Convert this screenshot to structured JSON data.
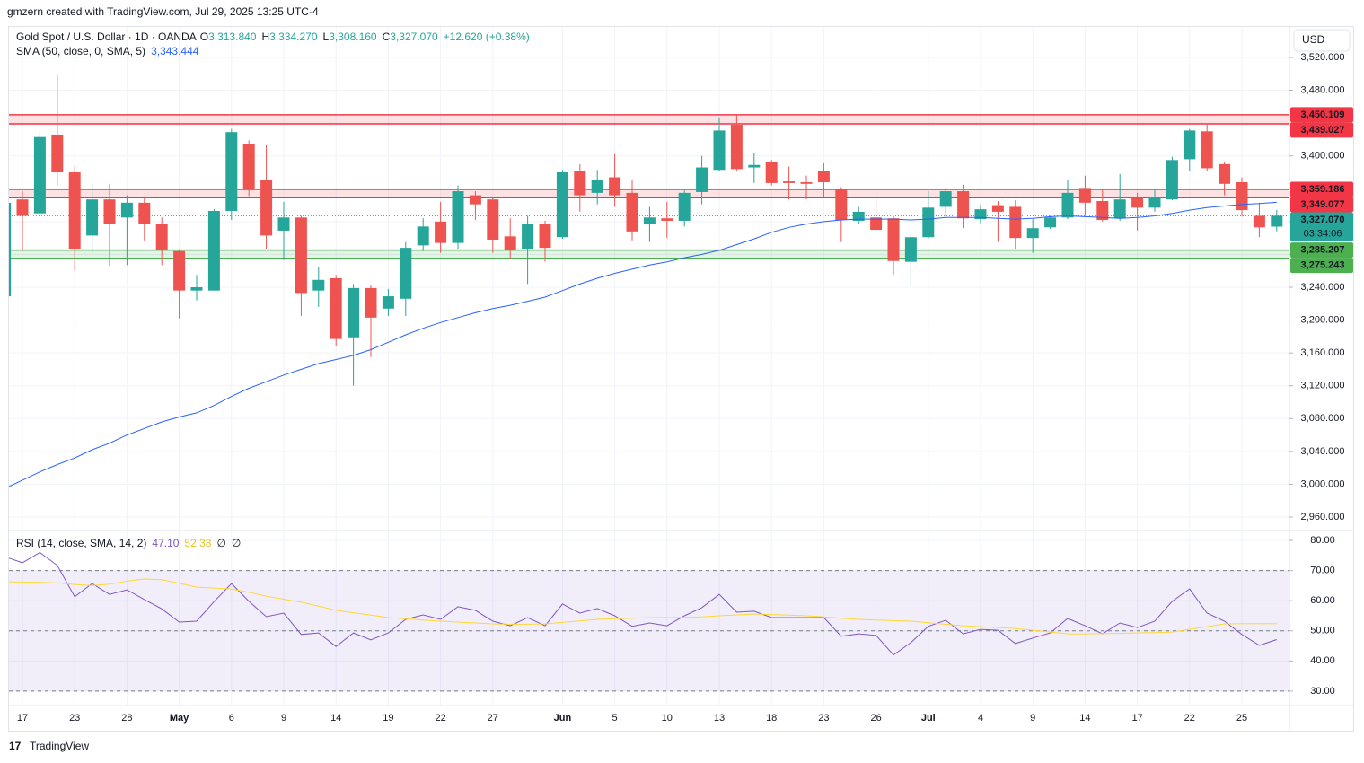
{
  "header": {
    "credit": "gmzern created with TradingView.com, Jul 29, 2025 13:25 UTC-4",
    "currency": "USD",
    "logo": "TradingView"
  },
  "chart_data": [
    {
      "type": "candlestick",
      "title": "Gold Spot / U.S. Dollar · 1D · OANDA",
      "ohlc_legend": [
        {
          "key": "O",
          "value": "3,313.840"
        },
        {
          "key": "H",
          "value": "3,334.270"
        },
        {
          "key": "L",
          "value": "3,308.160"
        },
        {
          "key": "C",
          "value": "3,327.070"
        }
      ],
      "change": "+12.620 (+0.38%)",
      "categories": [
        null,
        "17",
        null,
        null,
        "23",
        null,
        null,
        "28",
        null,
        null,
        "May",
        null,
        null,
        "6",
        null,
        null,
        "9",
        null,
        null,
        "14",
        null,
        null,
        "19",
        null,
        null,
        "22",
        null,
        null,
        "27",
        null,
        null,
        null,
        "Jun",
        null,
        null,
        "5",
        null,
        null,
        "10",
        null,
        null,
        "13",
        null,
        null,
        "18",
        null,
        null,
        "23",
        null,
        null,
        "26",
        null,
        null,
        "Jul",
        null,
        null,
        "4",
        null,
        null,
        "9",
        null,
        null,
        "14",
        null,
        null,
        "17",
        null,
        null,
        "22",
        null,
        null,
        "25",
        null,
        null
      ],
      "open": [
        3229,
        3347,
        3330,
        3426,
        3380,
        3303,
        3347,
        3325,
        3343,
        3317,
        3284,
        3236,
        3236,
        3333,
        3415,
        3371,
        3309,
        3325,
        3236,
        3251,
        3179,
        3239,
        3214,
        3226,
        3291,
        3320,
        3294,
        3352,
        3347,
        3302,
        3287,
        3317,
        3301,
        3382,
        3355,
        3374,
        3355,
        3317,
        3324,
        3321,
        3356,
        3383,
        3438,
        3386,
        3393,
        3369,
        3368,
        3382,
        3359,
        3321,
        3325,
        3324,
        3271,
        3301,
        3338,
        3357,
        3323,
        3340,
        3338,
        3300,
        3313,
        3325,
        3361,
        3345,
        3324,
        3349,
        3337,
        3347,
        3396,
        3430,
        3390,
        3368,
        3327,
        3313.84
      ],
      "high": [
        3357,
        3357,
        3430,
        3500,
        3387,
        3366,
        3366,
        3352,
        3350,
        3325,
        3286,
        3255,
        3335,
        3433,
        3419,
        3413,
        3344,
        3327,
        3264,
        3255,
        3244,
        3242,
        3238,
        3295,
        3324,
        3344,
        3364,
        3357,
        3349,
        3324,
        3327,
        3321,
        3383,
        3390,
        3383,
        3402,
        3371,
        3338,
        3344,
        3358,
        3400,
        3447,
        3450,
        3403,
        3395,
        3387,
        3376,
        3391,
        3362,
        3338,
        3348,
        3327,
        3306,
        3357,
        3361,
        3365,
        3341,
        3345,
        3346,
        3323,
        3327,
        3371,
        3376,
        3360,
        3378,
        3355,
        3360,
        3399,
        3433,
        3439,
        3392,
        3374,
        3343,
        3334.27
      ],
      "low": [
        3229,
        3284,
        3330,
        3364,
        3260,
        3282,
        3266,
        3267,
        3297,
        3267,
        3202,
        3224,
        3236,
        3322,
        3351,
        3287,
        3273,
        3205,
        3216,
        3168,
        3120,
        3155,
        3205,
        3205,
        3284,
        3282,
        3287,
        3322,
        3282,
        3275,
        3244,
        3271,
        3299,
        3332,
        3341,
        3338,
        3297,
        3295,
        3300,
        3314,
        3341,
        3382,
        3382,
        3367,
        3364,
        3347,
        3347,
        3350,
        3295,
        3317,
        3308,
        3255,
        3243,
        3299,
        3326,
        3312,
        3318,
        3295,
        3287,
        3282,
        3311,
        3323,
        3327,
        3320,
        3321,
        3309,
        3332,
        3346,
        3382,
        3382,
        3352,
        3326,
        3301,
        3308.16
      ],
      "close": [
        3343,
        3327,
        3423,
        3380,
        3287,
        3347,
        3317,
        3343,
        3317,
        3286,
        3236,
        3240,
        3333,
        3429,
        3360,
        3303,
        3325,
        3233,
        3249,
        3177,
        3239,
        3203,
        3229,
        3288,
        3314,
        3294,
        3357,
        3341,
        3298,
        3286,
        3317,
        3288,
        3380,
        3352,
        3371,
        3352,
        3308,
        3325,
        3321,
        3355,
        3386,
        3431,
        3384,
        3389,
        3367,
        3367,
        3366,
        3368,
        3322,
        3332,
        3310,
        3272,
        3301,
        3337,
        3357,
        3324,
        3335,
        3332,
        3300,
        3312,
        3325,
        3355,
        3343,
        3322,
        3347,
        3337,
        3350,
        3395,
        3431,
        3385,
        3366,
        3334,
        3313,
        3327.07
      ],
      "up_color": "#26a69a",
      "down_color": "#ef5350",
      "overlay": {
        "name": "SMA (50, close, 0, SMA, 5)",
        "value_label": "3,343.444",
        "color": "#2962ff",
        "values": [
          2995,
          3005,
          3015,
          3024,
          3032,
          3042,
          3050,
          3060,
          3068,
          3076,
          3082,
          3087,
          3096,
          3107,
          3117,
          3125,
          3133,
          3140,
          3147,
          3152,
          3157,
          3164,
          3173,
          3182,
          3190,
          3197,
          3203,
          3209,
          3214,
          3218,
          3223,
          3228,
          3236,
          3244,
          3251,
          3257,
          3262,
          3267,
          3271,
          3276,
          3280,
          3285,
          3292,
          3299,
          3307,
          3313,
          3317,
          3320,
          3322,
          3323,
          3323,
          3323,
          3322,
          3323,
          3325,
          3325,
          3325,
          3324,
          3323,
          3324,
          3326,
          3327,
          3326,
          3325,
          3324,
          3325,
          3327,
          3330,
          3334,
          3337,
          3339,
          3341,
          3342,
          3343.444
        ]
      },
      "zones": [
        {
          "low": {
            "value": 3439.027,
            "label": "3,439.027"
          },
          "high": {
            "value": 3450.109,
            "label": "3,450.109"
          },
          "color": "#f23645"
        },
        {
          "low": {
            "value": 3349.077,
            "label": "3,349.077"
          },
          "high": {
            "value": 3359.186,
            "label": "3,359.186"
          },
          "color": "#f23645"
        },
        {
          "low": {
            "value": 3275.243,
            "label": "3,275.243"
          },
          "high": {
            "value": 3285.207,
            "label": "3,285.207"
          },
          "color": "#4caf50"
        }
      ],
      "last_price": {
        "value": 3327.07,
        "label": "3,327.070"
      },
      "countdown": "03:34:06",
      "ylim": [
        2944.7,
        3557.2
      ],
      "yticks": [
        {
          "value": 2960,
          "label": "2,960.000"
        },
        {
          "value": 3000,
          "label": "3,000.000"
        },
        {
          "value": 3040,
          "label": "3,040.000"
        },
        {
          "value": 3080,
          "label": "3,080.000"
        },
        {
          "value": 3120,
          "label": "3,120.000"
        },
        {
          "value": 3160,
          "label": "3,160.000"
        },
        {
          "value": 3200,
          "label": "3,200.000"
        },
        {
          "value": 3240,
          "label": "3,240.000"
        },
        {
          "value": 3280,
          "label": "3,280.000"
        },
        {
          "value": 3320,
          "label": "3,320.000"
        },
        {
          "value": 3360,
          "label": "3,360.000"
        },
        {
          "value": 3400,
          "label": "3,400.000"
        },
        {
          "value": 3440,
          "label": "3,440.000"
        },
        {
          "value": 3480,
          "label": "3,480.000"
        },
        {
          "value": 3520,
          "label": "3,520.000"
        }
      ],
      "grid": true
    },
    {
      "type": "line",
      "title": "RSI (14, close, SMA, 14, 2)",
      "legend_values": [
        {
          "text": "47.10",
          "color": "#7e57c2"
        },
        {
          "text": "52.38",
          "color": "#e8c41a"
        },
        {
          "text": "∅",
          "color": "#131722"
        },
        {
          "text": "∅",
          "color": "#131722"
        }
      ],
      "series": [
        {
          "color": "#7e57c2",
          "values": [
            74.6,
            72.6,
            76,
            71.7,
            61.3,
            65.7,
            62.1,
            63.6,
            60.4,
            57.3,
            52.9,
            53.2,
            59.7,
            65.7,
            59.8,
            54.7,
            55.9,
            48.8,
            49.3,
            44.8,
            49.3,
            47,
            49.3,
            53.8,
            55.3,
            53.8,
            58,
            56.8,
            53.2,
            51.7,
            54.4,
            51.7,
            58.9,
            55.9,
            57.4,
            55,
            51.5,
            52.6,
            51.7,
            55,
            57.7,
            62.1,
            56.2,
            56.5,
            54.4,
            54.4,
            54.4,
            54.4,
            48.2,
            49,
            48.5,
            42,
            46.1,
            51.5,
            53.5,
            49,
            50.5,
            50.2,
            45.8,
            47.6,
            49.3,
            54.1,
            51.7,
            49,
            52.6,
            51.1,
            53.2,
            59.8,
            63.9,
            55.9,
            53.2,
            48.8,
            45.2,
            47.1
          ]
        },
        {
          "color": "#fdd835",
          "values": [
            66.3,
            66.2,
            66.1,
            65.9,
            65.4,
            65,
            65.5,
            66.5,
            67.2,
            67,
            65.8,
            64.5,
            64.2,
            63.9,
            62.8,
            61.5,
            60.5,
            59.5,
            58.2,
            56.8,
            56,
            55.2,
            54.4,
            54,
            53.6,
            53.2,
            52.9,
            52.6,
            52.3,
            52.2,
            52.2,
            52.3,
            52.8,
            53.3,
            53.8,
            54,
            54.2,
            54.4,
            54.4,
            54.5,
            54.6,
            55,
            55.3,
            55.6,
            55.4,
            55.2,
            55,
            54.6,
            54.2,
            53.8,
            53.6,
            53.4,
            53.2,
            52.7,
            52.2,
            51.7,
            51.4,
            51.1,
            50.8,
            50.2,
            49.6,
            49,
            49,
            49.1,
            49.2,
            49.3,
            49.4,
            49.6,
            50.5,
            51.4,
            52.3,
            52.4,
            52.4,
            52.38
          ]
        }
      ],
      "band": [
        30,
        70
      ],
      "band_color": "#7e57c2",
      "levels": [
        30,
        50,
        70
      ],
      "ylim": [
        25.5,
        83
      ],
      "yticks": [
        {
          "value": 30,
          "label": "30.00"
        },
        {
          "value": 40,
          "label": "40.00"
        },
        {
          "value": 50,
          "label": "50.00"
        },
        {
          "value": 60,
          "label": "60.00"
        },
        {
          "value": 70,
          "label": "70.00"
        },
        {
          "value": 80,
          "label": "80.00"
        }
      ],
      "grid": true
    }
  ]
}
